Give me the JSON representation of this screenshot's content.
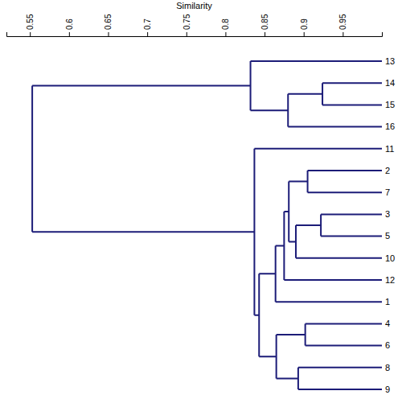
{
  "chart_data": {
    "type": "dendrogram",
    "x_label": "Similarity",
    "xlim": [
      0.52,
      1.0
    ],
    "xticks": [
      0.55,
      0.6,
      0.65,
      0.7,
      0.75,
      0.8,
      0.85,
      0.9,
      0.95
    ],
    "grid": false,
    "color": "#1c1c78",
    "tree": {
      "similarity": 0.553,
      "children": [
        {
          "similarity": 0.832,
          "children": [
            {
              "label": "13"
            },
            {
              "similarity": 0.88,
              "children": [
                {
                  "similarity": 0.924,
                  "children": [
                    {
                      "label": "14"
                    },
                    {
                      "label": "15"
                    }
                  ]
                },
                {
                  "label": "16"
                }
              ]
            }
          ]
        },
        {
          "similarity": 0.837,
          "children": [
            {
              "label": "11"
            },
            {
              "similarity": 0.843,
              "children": [
                {
                  "similarity": 0.864,
                  "children": [
                    {
                      "similarity": 0.875,
                      "children": [
                        {
                          "similarity": 0.881,
                          "children": [
                            {
                              "similarity": 0.905,
                              "children": [
                                {
                                  "label": "2"
                                },
                                {
                                  "label": "7"
                                }
                              ]
                            },
                            {
                              "similarity": 0.89,
                              "children": [
                                {
                                  "similarity": 0.922,
                                  "children": [
                                    {
                                      "label": "3"
                                    },
                                    {
                                      "label": "5"
                                    }
                                  ]
                                },
                                {
                                  "label": "10"
                                }
                              ]
                            }
                          ]
                        },
                        {
                          "label": "12"
                        }
                      ]
                    },
                    {
                      "label": "1"
                    }
                  ]
                },
                {
                  "similarity": 0.865,
                  "children": [
                    {
                      "similarity": 0.902,
                      "children": [
                        {
                          "label": "4"
                        },
                        {
                          "label": "6"
                        }
                      ]
                    },
                    {
                      "similarity": 0.893,
                      "children": [
                        {
                          "label": "8"
                        },
                        {
                          "label": "9"
                        }
                      ]
                    }
                  ]
                }
              ]
            }
          ]
        }
      ]
    }
  }
}
